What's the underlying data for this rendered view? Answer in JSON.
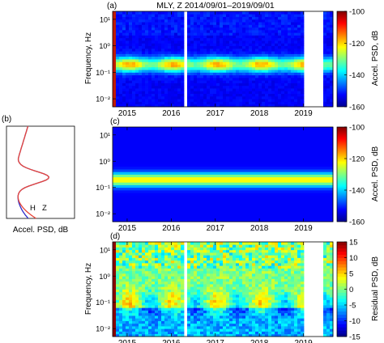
{
  "chart_data": [
    {
      "panel": "(a)",
      "type": "heatmap",
      "title": "MLY, Z 2014/09/01–2019/09/01",
      "ylabel": "Frequency, Hz",
      "yscale": "log",
      "xlim": [
        2014.67,
        2019.67
      ],
      "ylim": [
        0.005,
        20
      ],
      "xticks": [
        "2015",
        "2016",
        "2017",
        "2018",
        "2019"
      ],
      "yticks": [
        "10⁻²",
        "10⁻¹",
        "10⁰",
        "10¹"
      ],
      "data_gaps": [
        [
          2016.32,
          2016.38
        ],
        [
          2019.0,
          2019.42
        ]
      ],
      "colorbar": {
        "label": "Accel. PSD, dB",
        "range": [
          -160,
          -100
        ],
        "ticks": [
          "-100",
          "-120",
          "-140",
          "-160"
        ]
      },
      "notes": "Microseism band centred near 0.2 Hz (about -130 dB); higher levels in winter months."
    },
    {
      "panel": "(b)",
      "type": "line",
      "xlabel": "Accel. PSD, dB",
      "yscale": "log",
      "series": [
        {
          "name": "H",
          "color": "#2d2dc8"
        },
        {
          "name": "Z",
          "color": "#e8463a"
        }
      ]
    },
    {
      "panel": "(c)",
      "type": "heatmap",
      "ylabel": "",
      "yscale": "log",
      "xlim": [
        2014.67,
        2019.67
      ],
      "ylim": [
        0.005,
        20
      ],
      "xticks": [
        "2015",
        "2016",
        "2017",
        "2018",
        "2019"
      ],
      "yticks": [
        "10⁻²",
        "10⁻¹",
        "10⁰",
        "10¹"
      ],
      "colorbar": {
        "label": "Accel. PSD, dB",
        "range": [
          -160,
          -100
        ],
        "ticks": [
          "-100",
          "-120",
          "-140",
          "-160"
        ]
      },
      "notes": "Time-invariant model spectrum; maximum of about -120 dB near 0.2 Hz."
    },
    {
      "panel": "(d)",
      "type": "heatmap",
      "ylabel": "Frequency, Hz",
      "yscale": "log",
      "xlim": [
        2014.67,
        2019.67
      ],
      "ylim": [
        0.005,
        20
      ],
      "xticks": [
        "2015",
        "2016",
        "2017",
        "2018",
        "2019"
      ],
      "yticks": [
        "10⁻²",
        "10⁻¹",
        "10⁰",
        "10¹"
      ],
      "data_gaps": [
        [
          2016.32,
          2016.38
        ],
        [
          2019.0,
          2019.42
        ]
      ],
      "colorbar": {
        "label": "Residual PSD, dB",
        "range": [
          -15,
          15
        ],
        "ticks": [
          "15",
          "10",
          "5",
          "0",
          "-5",
          "-10",
          "-15"
        ]
      },
      "notes": "Residual (a) minus (c); positive residuals around 0.1 Hz in winter."
    }
  ]
}
